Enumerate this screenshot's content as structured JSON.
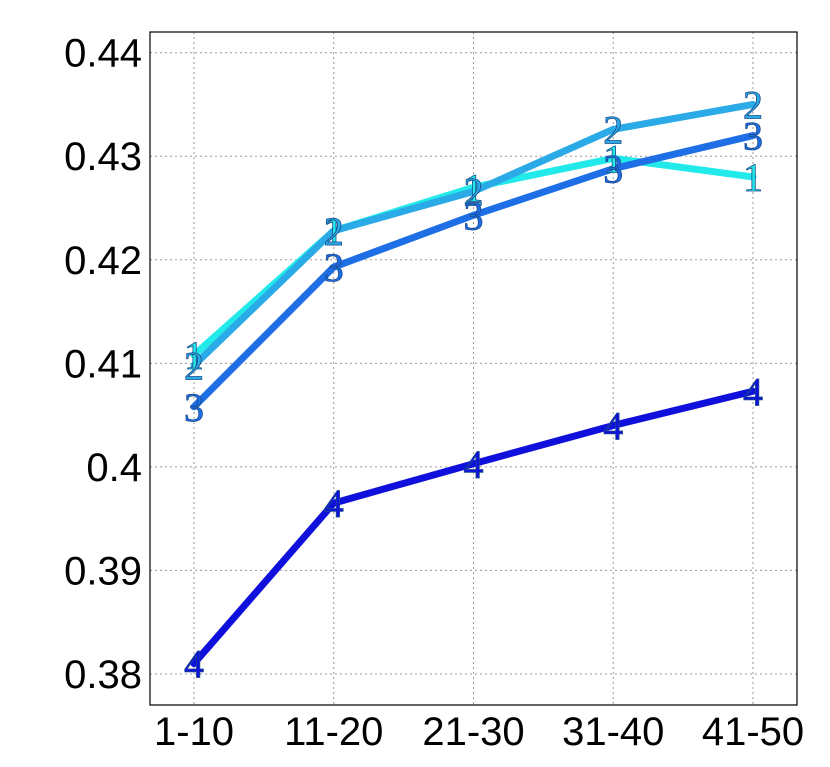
{
  "chart_data": {
    "type": "line",
    "categories": [
      "1-10",
      "11-20",
      "21-30",
      "31-40",
      "41-50"
    ],
    "ylim": [
      0.377,
      0.442
    ],
    "yticks": [
      0.38,
      0.39,
      0.4,
      0.41,
      0.42,
      0.43,
      0.44
    ],
    "ytick_labels": [
      "0.38",
      "0.39",
      "0.4",
      "0.41",
      "0.42",
      "0.43",
      "0.44"
    ],
    "grid": true,
    "series": [
      {
        "marker": "1",
        "color": "#22eaea",
        "values": [
          0.4108,
          0.4228,
          0.427,
          0.4298,
          0.428
        ]
      },
      {
        "marker": "2",
        "color": "#2aaae6",
        "values": [
          0.4098,
          0.4228,
          0.4266,
          0.4326,
          0.435
        ]
      },
      {
        "marker": "3",
        "color": "#1e6ee6",
        "values": [
          0.4058,
          0.4193,
          0.4243,
          0.4288,
          0.432
        ]
      },
      {
        "marker": "4",
        "color": "#1010dd",
        "values": [
          0.381,
          0.3965,
          0.4003,
          0.404,
          0.4073
        ]
      }
    ]
  }
}
